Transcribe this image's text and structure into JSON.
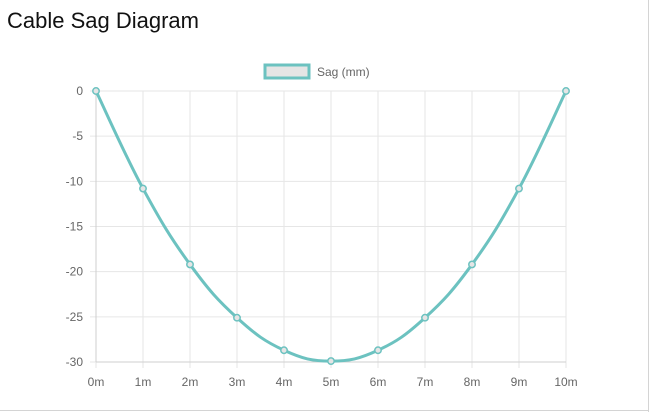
{
  "page": {
    "title": "Cable Sag Diagram"
  },
  "colors": {
    "line": "#6cc2c0",
    "box_fill": "#e5e5e5",
    "grid": "#e6e6e6",
    "tick_text": "#666666"
  },
  "chart_data": {
    "type": "line",
    "title": "",
    "xlabel": "",
    "ylabel": "",
    "categories": [
      "0m",
      "1m",
      "2m",
      "3m",
      "4m",
      "5m",
      "6m",
      "7m",
      "8m",
      "9m",
      "10m"
    ],
    "series": [
      {
        "name": "Sag (mm)",
        "values": [
          0,
          -10.8,
          -19.2,
          -25.1,
          -28.7,
          -29.9,
          -28.7,
          -25.1,
          -19.2,
          -10.8,
          0
        ]
      }
    ],
    "ylim": [
      -30,
      0
    ],
    "yticks": [
      0,
      -5,
      -10,
      -15,
      -20,
      -25,
      -30
    ],
    "grid": true,
    "legend": "top-center"
  }
}
